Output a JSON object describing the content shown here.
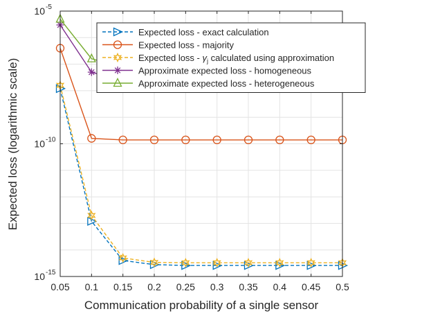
{
  "chart_data": {
    "type": "line",
    "title": "",
    "xlabel": "Communication probability of a single sensor",
    "ylabel": "Expected loss (logarithmic scale)",
    "y_scale": "log",
    "xlim": [
      0.05,
      0.5
    ],
    "ylim": [
      1e-15,
      1e-05
    ],
    "grid": true,
    "legend_position": "top-right",
    "x": [
      0.05,
      0.1,
      0.15,
      0.2,
      0.25,
      0.3,
      0.35,
      0.4,
      0.45,
      0.5
    ],
    "x_tick_labels": [
      "0.05",
      "0.1",
      "0.15",
      "0.2",
      "0.25",
      "0.3",
      "0.35",
      "0.4",
      "0.45",
      "0.5"
    ],
    "y_tick_labels": [
      {
        "base": "10",
        "exp": "-5"
      },
      {
        "base": "10",
        "exp": "-10"
      },
      {
        "base": "10",
        "exp": "-15"
      }
    ],
    "series": [
      {
        "name": "Expected loss - exact calculation",
        "color": "#0072BD",
        "marker": "triangle-right",
        "line_style": "dashed",
        "values": [
          1.2e-08,
          1.2e-13,
          4e-15,
          2.8e-15,
          2.6e-15,
          2.6e-15,
          2.6e-15,
          2.6e-15,
          2.6e-15,
          2.6e-15
        ]
      },
      {
        "name": "Expected loss - majority",
        "color": "#D95319",
        "marker": "circle",
        "line_style": "solid",
        "values": [
          4e-07,
          1.6e-10,
          1.4e-10,
          1.4e-10,
          1.4e-10,
          1.4e-10,
          1.4e-10,
          1.4e-10,
          1.4e-10,
          1.4e-10
        ]
      },
      {
        "name_parts": [
          "Expected loss - ",
          "γ",
          "j",
          " calculated using approximation"
        ],
        "color": "#EDB120",
        "marker": "hexagram",
        "line_style": "dashed",
        "values": [
          1.6e-08,
          2e-13,
          5e-15,
          3.4e-15,
          3.3e-15,
          3.3e-15,
          3.3e-15,
          3.3e-15,
          3.3e-15,
          3.3e-15
        ]
      },
      {
        "name": "Approximate expected loss - homogeneous",
        "color": "#7E2F8E",
        "marker": "asterisk",
        "line_style": "solid",
        "values": [
          3e-06,
          5e-08,
          2.2e-08,
          1.9e-08,
          1.9e-08,
          1.9e-08,
          1.9e-08,
          1.9e-08,
          1.9e-08,
          1.9e-08
        ]
      },
      {
        "name": "Approximate expected loss - heterogeneous",
        "color": "#77AC30",
        "marker": "triangle-up",
        "line_style": "solid",
        "values": [
          5e-06,
          1.6e-07,
          7.5e-08,
          6e-08,
          5.9e-08,
          5.9e-08,
          5.9e-08,
          5.9e-08,
          5.9e-08,
          5.9e-08
        ]
      }
    ]
  }
}
